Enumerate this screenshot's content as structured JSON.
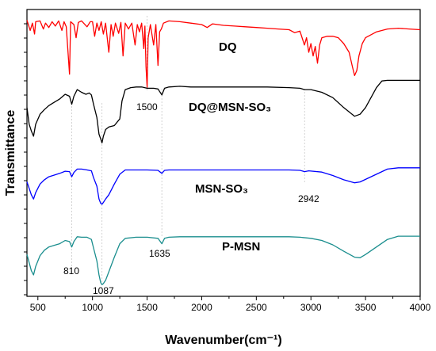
{
  "chart_data": {
    "type": "line",
    "title": "",
    "xlabel": "Wavenumber(cm⁻¹)",
    "ylabel": "Transmittance",
    "xlim": [
      400,
      4000
    ],
    "x_ticks": [
      500,
      1000,
      1500,
      2000,
      2500,
      3000,
      3500,
      4000
    ],
    "y_ticks_labeled": false,
    "grid": false,
    "legend": "none",
    "series_labels": [
      {
        "series": "DQ",
        "text": "DQ"
      },
      {
        "series": "DQ@MSN-SO3",
        "text": "DQ@MSN-SO₃"
      },
      {
        "series": "MSN-SO3",
        "text": "MSN-SO₃"
      },
      {
        "series": "P-MSN",
        "text": "P-MSN"
      }
    ],
    "peak_annotations": [
      {
        "text": "810",
        "x": 810
      },
      {
        "text": "1087",
        "x": 1087
      },
      {
        "text": "1500",
        "x": 1500
      },
      {
        "text": "1635",
        "x": 1635
      },
      {
        "text": "2942",
        "x": 2942
      }
    ],
    "series": [
      {
        "name": "DQ",
        "color": "#ff0000",
        "points": [
          [
            400,
            0.94
          ],
          [
            430,
            0.8
          ],
          [
            450,
            0.9
          ],
          [
            470,
            0.75
          ],
          [
            480,
            0.92
          ],
          [
            520,
            0.93
          ],
          [
            550,
            0.82
          ],
          [
            570,
            0.9
          ],
          [
            600,
            0.84
          ],
          [
            630,
            0.92
          ],
          [
            660,
            0.86
          ],
          [
            690,
            0.93
          ],
          [
            720,
            0.8
          ],
          [
            740,
            0.92
          ],
          [
            760,
            0.85
          ],
          [
            790,
            0.2
          ],
          [
            800,
            0.92
          ],
          [
            830,
            0.88
          ],
          [
            850,
            0.7
          ],
          [
            870,
            0.91
          ],
          [
            900,
            0.93
          ],
          [
            950,
            0.85
          ],
          [
            980,
            0.92
          ],
          [
            1000,
            0.92
          ],
          [
            1020,
            0.72
          ],
          [
            1040,
            0.9
          ],
          [
            1060,
            0.8
          ],
          [
            1080,
            0.92
          ],
          [
            1100,
            0.75
          ],
          [
            1120,
            0.9
          ],
          [
            1150,
            0.5
          ],
          [
            1170,
            0.88
          ],
          [
            1190,
            0.72
          ],
          [
            1210,
            0.9
          ],
          [
            1240,
            0.76
          ],
          [
            1260,
            0.91
          ],
          [
            1280,
            0.45
          ],
          [
            1300,
            0.9
          ],
          [
            1330,
            0.82
          ],
          [
            1360,
            0.9
          ],
          [
            1390,
            0.6
          ],
          [
            1410,
            0.88
          ],
          [
            1430,
            0.78
          ],
          [
            1450,
            0.9
          ],
          [
            1470,
            0.55
          ],
          [
            1480,
            0.86
          ],
          [
            1490,
            0.3
          ],
          [
            1500,
            0.02
          ],
          [
            1510,
            0.7
          ],
          [
            1530,
            0.88
          ],
          [
            1560,
            0.6
          ],
          [
            1580,
            0.88
          ],
          [
            1600,
            0.32
          ],
          [
            1615,
            0.78
          ],
          [
            1630,
            0.82
          ],
          [
            1650,
            0.9
          ],
          [
            1700,
            0.93
          ],
          [
            1800,
            0.92
          ],
          [
            1900,
            0.9
          ],
          [
            2000,
            0.88
          ],
          [
            2050,
            0.84
          ],
          [
            2100,
            0.89
          ],
          [
            2200,
            0.87
          ],
          [
            2300,
            0.86
          ],
          [
            2400,
            0.85
          ],
          [
            2500,
            0.84
          ],
          [
            2600,
            0.83
          ],
          [
            2700,
            0.82
          ],
          [
            2800,
            0.81
          ],
          [
            2850,
            0.77
          ],
          [
            2900,
            0.79
          ],
          [
            2940,
            0.6
          ],
          [
            2960,
            0.7
          ],
          [
            2980,
            0.5
          ],
          [
            3000,
            0.62
          ],
          [
            3020,
            0.45
          ],
          [
            3040,
            0.58
          ],
          [
            3060,
            0.35
          ],
          [
            3080,
            0.6
          ],
          [
            3100,
            0.7
          ],
          [
            3150,
            0.72
          ],
          [
            3200,
            0.72
          ],
          [
            3250,
            0.7
          ],
          [
            3300,
            0.62
          ],
          [
            3350,
            0.5
          ],
          [
            3380,
            0.3
          ],
          [
            3400,
            0.18
          ],
          [
            3420,
            0.25
          ],
          [
            3440,
            0.45
          ],
          [
            3470,
            0.62
          ],
          [
            3500,
            0.7
          ],
          [
            3600,
            0.78
          ],
          [
            3700,
            0.82
          ],
          [
            3800,
            0.83
          ],
          [
            3900,
            0.82
          ],
          [
            4000,
            0.81
          ]
        ]
      },
      {
        "name": "DQ@MSN-SO3",
        "color": "#000000",
        "points": [
          [
            400,
            0.55
          ],
          [
            420,
            0.3
          ],
          [
            440,
            0.2
          ],
          [
            460,
            0.12
          ],
          [
            480,
            0.3
          ],
          [
            520,
            0.45
          ],
          [
            560,
            0.52
          ],
          [
            600,
            0.58
          ],
          [
            650,
            0.63
          ],
          [
            700,
            0.68
          ],
          [
            750,
            0.75
          ],
          [
            790,
            0.72
          ],
          [
            810,
            0.6
          ],
          [
            830,
            0.72
          ],
          [
            860,
            0.82
          ],
          [
            900,
            0.78
          ],
          [
            940,
            0.75
          ],
          [
            970,
            0.77
          ],
          [
            990,
            0.74
          ],
          [
            1010,
            0.6
          ],
          [
            1040,
            0.4
          ],
          [
            1060,
            0.15
          ],
          [
            1075,
            0.08
          ],
          [
            1087,
            0.02
          ],
          [
            1100,
            0.12
          ],
          [
            1120,
            0.22
          ],
          [
            1150,
            0.26
          ],
          [
            1200,
            0.28
          ],
          [
            1250,
            0.38
          ],
          [
            1270,
            0.65
          ],
          [
            1300,
            0.82
          ],
          [
            1350,
            0.85
          ],
          [
            1400,
            0.86
          ],
          [
            1450,
            0.86
          ],
          [
            1500,
            0.84
          ],
          [
            1560,
            0.84
          ],
          [
            1600,
            0.83
          ],
          [
            1635,
            0.74
          ],
          [
            1660,
            0.84
          ],
          [
            1700,
            0.86
          ],
          [
            1800,
            0.87
          ],
          [
            1900,
            0.86
          ],
          [
            2000,
            0.86
          ],
          [
            2200,
            0.86
          ],
          [
            2400,
            0.86
          ],
          [
            2600,
            0.86
          ],
          [
            2800,
            0.85
          ],
          [
            2900,
            0.84
          ],
          [
            2942,
            0.82
          ],
          [
            3000,
            0.82
          ],
          [
            3100,
            0.78
          ],
          [
            3200,
            0.7
          ],
          [
            3300,
            0.55
          ],
          [
            3400,
            0.42
          ],
          [
            3450,
            0.45
          ],
          [
            3500,
            0.55
          ],
          [
            3550,
            0.7
          ],
          [
            3600,
            0.85
          ],
          [
            3650,
            0.95
          ],
          [
            3700,
            0.96
          ],
          [
            3800,
            0.96
          ],
          [
            3900,
            0.96
          ],
          [
            4000,
            0.96
          ]
        ]
      },
      {
        "name": "MSN-SO3",
        "color": "#0000ff",
        "points": [
          [
            400,
            0.6
          ],
          [
            420,
            0.45
          ],
          [
            440,
            0.3
          ],
          [
            460,
            0.2
          ],
          [
            480,
            0.35
          ],
          [
            520,
            0.55
          ],
          [
            560,
            0.65
          ],
          [
            600,
            0.72
          ],
          [
            650,
            0.76
          ],
          [
            700,
            0.8
          ],
          [
            750,
            0.85
          ],
          [
            790,
            0.84
          ],
          [
            810,
            0.72
          ],
          [
            830,
            0.82
          ],
          [
            860,
            0.9
          ],
          [
            900,
            0.9
          ],
          [
            950,
            0.88
          ],
          [
            990,
            0.86
          ],
          [
            1010,
            0.7
          ],
          [
            1040,
            0.5
          ],
          [
            1060,
            0.2
          ],
          [
            1075,
            0.1
          ],
          [
            1087,
            0.08
          ],
          [
            1100,
            0.12
          ],
          [
            1120,
            0.2
          ],
          [
            1150,
            0.3
          ],
          [
            1200,
            0.55
          ],
          [
            1250,
            0.78
          ],
          [
            1300,
            0.88
          ],
          [
            1400,
            0.88
          ],
          [
            1500,
            0.88
          ],
          [
            1600,
            0.87
          ],
          [
            1635,
            0.8
          ],
          [
            1660,
            0.87
          ],
          [
            1700,
            0.88
          ],
          [
            1800,
            0.88
          ],
          [
            2000,
            0.88
          ],
          [
            2200,
            0.88
          ],
          [
            2400,
            0.88
          ],
          [
            2600,
            0.88
          ],
          [
            2800,
            0.88
          ],
          [
            2900,
            0.87
          ],
          [
            2942,
            0.84
          ],
          [
            2980,
            0.86
          ],
          [
            3100,
            0.83
          ],
          [
            3200,
            0.75
          ],
          [
            3300,
            0.65
          ],
          [
            3400,
            0.58
          ],
          [
            3450,
            0.6
          ],
          [
            3500,
            0.66
          ],
          [
            3600,
            0.78
          ],
          [
            3700,
            0.9
          ],
          [
            3800,
            0.93
          ],
          [
            3900,
            0.93
          ],
          [
            4000,
            0.93
          ]
        ]
      },
      {
        "name": "P-MSN",
        "color": "#1a8e8e",
        "points": [
          [
            400,
            0.6
          ],
          [
            420,
            0.45
          ],
          [
            440,
            0.3
          ],
          [
            460,
            0.22
          ],
          [
            480,
            0.38
          ],
          [
            520,
            0.58
          ],
          [
            560,
            0.68
          ],
          [
            600,
            0.74
          ],
          [
            650,
            0.77
          ],
          [
            700,
            0.8
          ],
          [
            750,
            0.86
          ],
          [
            790,
            0.84
          ],
          [
            810,
            0.74
          ],
          [
            830,
            0.84
          ],
          [
            860,
            0.93
          ],
          [
            900,
            0.92
          ],
          [
            950,
            0.92
          ],
          [
            990,
            0.88
          ],
          [
            1010,
            0.72
          ],
          [
            1040,
            0.48
          ],
          [
            1060,
            0.22
          ],
          [
            1075,
            0.08
          ],
          [
            1087,
            0.04
          ],
          [
            1100,
            0.06
          ],
          [
            1120,
            0.12
          ],
          [
            1150,
            0.28
          ],
          [
            1200,
            0.55
          ],
          [
            1250,
            0.8
          ],
          [
            1300,
            0.9
          ],
          [
            1400,
            0.92
          ],
          [
            1500,
            0.92
          ],
          [
            1600,
            0.9
          ],
          [
            1635,
            0.8
          ],
          [
            1660,
            0.9
          ],
          [
            1700,
            0.92
          ],
          [
            1800,
            0.93
          ],
          [
            2000,
            0.93
          ],
          [
            2200,
            0.93
          ],
          [
            2400,
            0.93
          ],
          [
            2600,
            0.93
          ],
          [
            2800,
            0.93
          ],
          [
            2900,
            0.92
          ],
          [
            3000,
            0.9
          ],
          [
            3100,
            0.86
          ],
          [
            3200,
            0.78
          ],
          [
            3300,
            0.66
          ],
          [
            3400,
            0.55
          ],
          [
            3450,
            0.54
          ],
          [
            3500,
            0.6
          ],
          [
            3600,
            0.74
          ],
          [
            3700,
            0.88
          ],
          [
            3800,
            0.94
          ],
          [
            3900,
            0.94
          ],
          [
            4000,
            0.94
          ]
        ]
      }
    ]
  }
}
